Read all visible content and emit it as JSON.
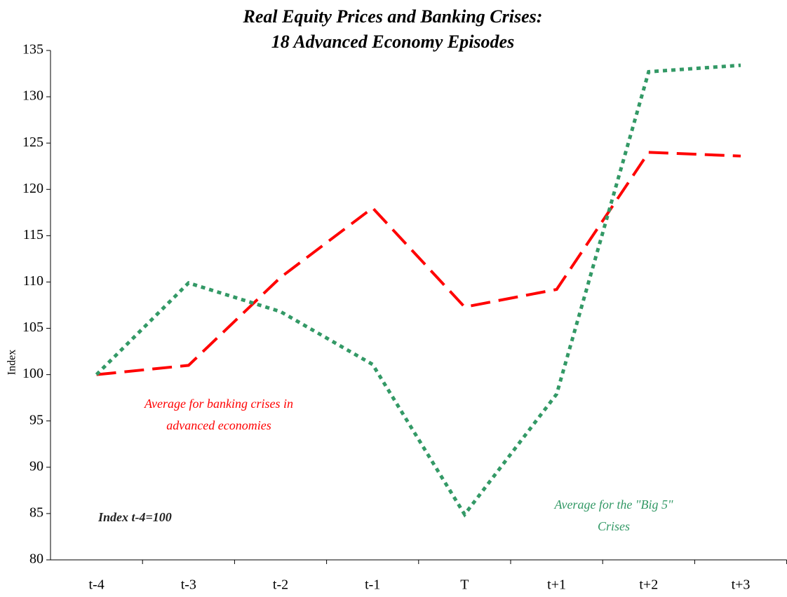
{
  "chart_data": {
    "type": "line",
    "title": [
      "Real Equity Prices and Banking Crises:",
      "18 Advanced Economy Episodes"
    ],
    "y_label": "Index",
    "categories": [
      "t-4",
      "t-3",
      "t-2",
      "t-1",
      "T",
      "t+1",
      "t+2",
      "t+3"
    ],
    "series": [
      {
        "name": "Average for banking crises in advanced economies",
        "color": "#ff0000",
        "dash": "dashed",
        "values": [
          100,
          101,
          110.5,
          118,
          107.3,
          109.2,
          124,
          123.6
        ]
      },
      {
        "name": "Average for the \"Big 5\" Crises",
        "color": "#339966",
        "dash": "dotted",
        "values": [
          100,
          109.9,
          106.8,
          101.1,
          84.9,
          97.9,
          132.7,
          133.4
        ]
      }
    ],
    "legend_lines": [
      [
        "Average for banking crises in",
        "advanced economies"
      ],
      [
        "Average for the \"Big 5\"",
        "Crises"
      ]
    ],
    "annotation": "Index t-4=100",
    "ylim": [
      80,
      135
    ],
    "yticks": [
      80,
      85,
      90,
      95,
      100,
      105,
      110,
      115,
      120,
      125,
      130,
      135
    ],
    "grid": false
  }
}
